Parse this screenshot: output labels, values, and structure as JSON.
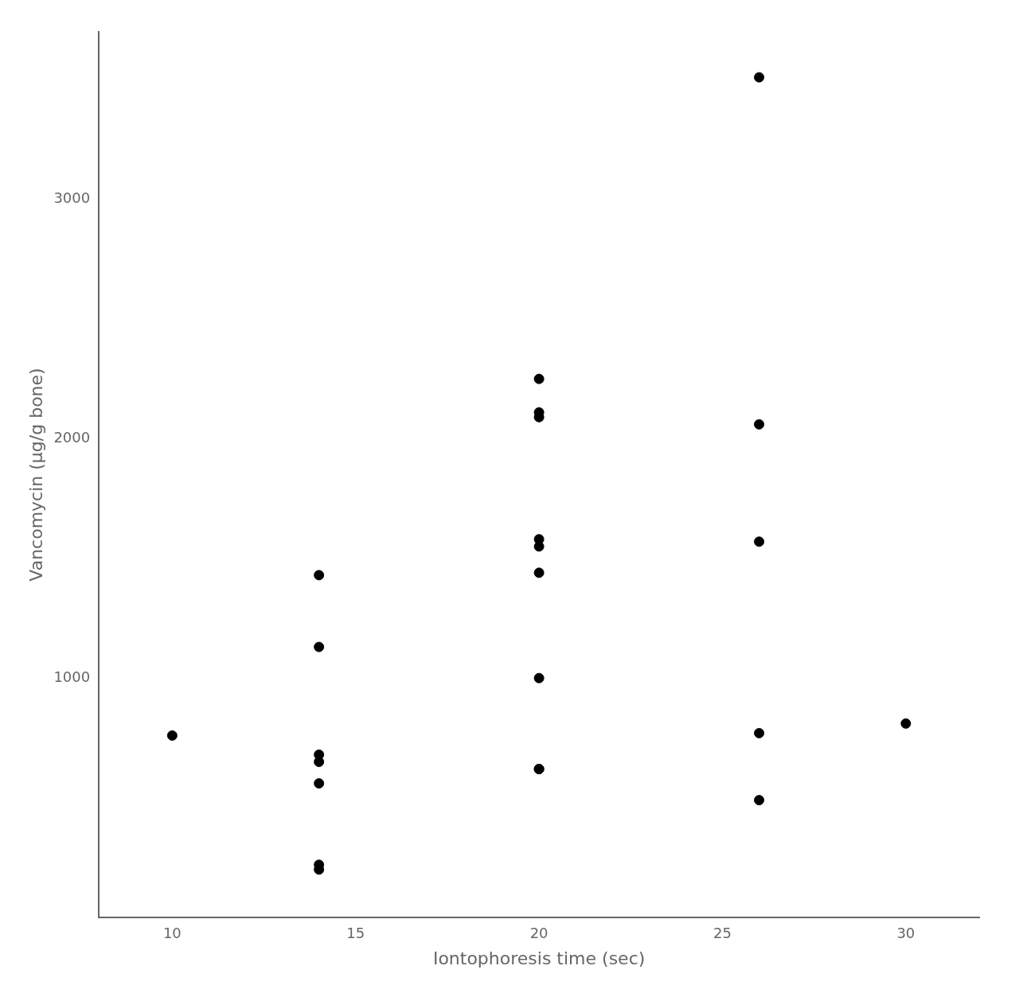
{
  "chart_data": {
    "type": "scatter",
    "xlabel": "Iontophoresis time (sec)",
    "ylabel": "Vancomycin (µg/g bone)",
    "x": [
      10,
      14,
      14,
      14,
      14,
      14,
      14,
      14,
      20,
      20,
      20,
      20,
      20,
      20,
      20,
      20,
      20,
      26,
      26,
      26,
      26,
      26,
      30
    ],
    "values": [
      760,
      1430,
      1130,
      680,
      650,
      560,
      220,
      200,
      2250,
      2110,
      2090,
      1580,
      1550,
      1440,
      1000,
      620,
      620,
      3510,
      2060,
      1570,
      770,
      490,
      810
    ],
    "color": "#000000",
    "xlim": [
      8,
      32
    ],
    "ylim": [
      0,
      3700
    ],
    "xticks": [
      10,
      15,
      20,
      25,
      30
    ],
    "yticks": [
      1000,
      2000,
      3000
    ],
    "grid": false
  }
}
